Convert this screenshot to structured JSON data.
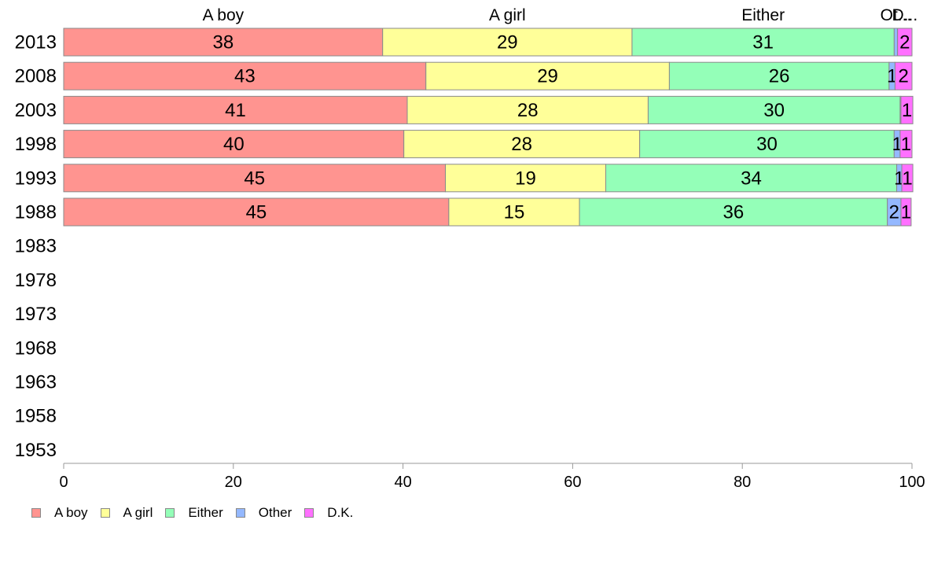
{
  "chart_data": {
    "type": "bar",
    "orientation": "horizontal",
    "stacked": true,
    "categories": [
      "2013",
      "2008",
      "2003",
      "1998",
      "1993",
      "1988",
      "1983",
      "1978",
      "1973",
      "1968",
      "1963",
      "1958",
      "1953"
    ],
    "series": [
      {
        "name": "A boy",
        "color": "#ff9490",
        "values": [
          37.6,
          42.7,
          40.5,
          40.1,
          45.0,
          45.4,
          null,
          null,
          null,
          null,
          null,
          null,
          null
        ],
        "labels": [
          "38",
          "43",
          "41",
          "40",
          "45",
          "45",
          "",
          "",
          "",
          "",
          "",
          "",
          ""
        ]
      },
      {
        "name": "A girl",
        "color": "#ffff99",
        "values": [
          29.4,
          28.7,
          28.4,
          27.8,
          18.9,
          15.4,
          null,
          null,
          null,
          null,
          null,
          null,
          null
        ],
        "labels": [
          "29",
          "29",
          "28",
          "28",
          "19",
          "15",
          "",
          "",
          "",
          "",
          "",
          "",
          ""
        ]
      },
      {
        "name": "Either",
        "color": "#94ffb8",
        "values": [
          30.9,
          25.9,
          29.7,
          30.0,
          34.3,
          36.3,
          null,
          null,
          null,
          null,
          null,
          null,
          null
        ],
        "labels": [
          "31",
          "26",
          "30",
          "30",
          "34",
          "36",
          "",
          "",
          "",
          "",
          "",
          "",
          ""
        ]
      },
      {
        "name": "Other",
        "color": "#94b8ff",
        "values": [
          0.4,
          0.7,
          0.1,
          0.7,
          0.6,
          1.6,
          null,
          null,
          null,
          null,
          null,
          null,
          null
        ],
        "labels": [
          "",
          "1",
          "",
          "1",
          "1",
          "2",
          "",
          "",
          "",
          "",
          "",
          "",
          ""
        ]
      },
      {
        "name": "D.K.",
        "color": "#ff70ff",
        "values": [
          1.7,
          2.0,
          1.4,
          1.4,
          1.3,
          1.2,
          null,
          null,
          null,
          null,
          null,
          null,
          null
        ],
        "labels": [
          "2",
          "2",
          "1",
          "1",
          "1",
          "1",
          "",
          "",
          "",
          "",
          "",
          "",
          ""
        ]
      }
    ],
    "top_labels": [
      "A boy",
      "A girl",
      "Either",
      "Ot...",
      "D..."
    ],
    "xlim": [
      0,
      100
    ],
    "xticks": [
      "0",
      "20",
      "40",
      "60",
      "80",
      "100"
    ],
    "grid": false,
    "legend_position": "bottom-left"
  },
  "legend": {
    "items": [
      {
        "label": "A boy",
        "color": "#ff9490"
      },
      {
        "label": "A girl",
        "color": "#ffff99"
      },
      {
        "label": "Either",
        "color": "#94ffb8"
      },
      {
        "label": "Other",
        "color": "#94b8ff"
      },
      {
        "label": "D.K.",
        "color": "#ff70ff"
      }
    ]
  }
}
